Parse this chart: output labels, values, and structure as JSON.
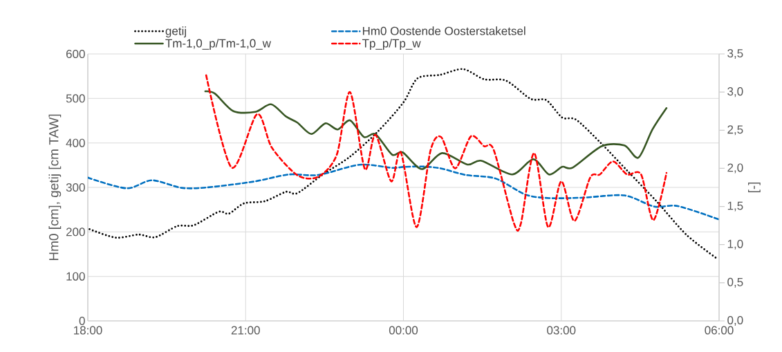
{
  "chart_data": {
    "type": "line",
    "ylabel": "Hm0 [cm], getij [cm TAW]",
    "y2label": "[-]",
    "xlim": [
      "2000-01-01T18:00",
      "2000-01-02T06:00"
    ],
    "xticks": [
      {
        "value": "2000-01-01T18:00",
        "label": "18:00"
      },
      {
        "value": "2000-01-01T21:00",
        "label": "21:00"
      },
      {
        "value": "2000-01-02T00:00",
        "label": "00:00"
      },
      {
        "value": "2000-01-02T03:00",
        "label": "03:00"
      },
      {
        "value": "2000-01-02T06:00",
        "label": "06:00"
      }
    ],
    "ylim": [
      0,
      600
    ],
    "yticks": [
      0,
      100,
      200,
      300,
      400,
      500,
      600
    ],
    "y2lim": [
      0,
      3.5
    ],
    "y2ticks": [
      {
        "value": 0,
        "label": "0,0"
      },
      {
        "value": 0.5,
        "label": "0,5"
      },
      {
        "value": 1,
        "label": "1,0"
      },
      {
        "value": 1.5,
        "label": "1,5"
      },
      {
        "value": 2,
        "label": "2,0"
      },
      {
        "value": 2.5,
        "label": "2,5"
      },
      {
        "value": 3,
        "label": "3,0"
      },
      {
        "value": 3.5,
        "label": "3,5"
      }
    ],
    "grid": true,
    "legend": "top",
    "marker": "none",
    "series": [
      {
        "name": "getij",
        "color": "#000000",
        "line_style": "dotted",
        "x": [
          "2000-01-01T18:02",
          "2000-01-01T18:32",
          "2000-01-01T18:58",
          "2000-01-01T19:17",
          "2000-01-01T19:42",
          "2000-01-01T20:01",
          "2000-01-01T20:29",
          "2000-01-01T20:41",
          "2000-01-01T20:58",
          "2000-01-01T21:22",
          "2000-01-01T21:46",
          "2000-01-01T21:59",
          "2000-01-01T22:28",
          "2000-01-01T22:59",
          "2000-01-01T23:31",
          "2000-01-02T00:00",
          "2000-01-02T00:16",
          "2000-01-02T00:42",
          "2000-01-02T01:08",
          "2000-01-02T01:32",
          "2000-01-02T01:57",
          "2000-01-02T02:25",
          "2000-01-02T02:43",
          "2000-01-02T03:01",
          "2000-01-02T03:17",
          "2000-01-02T03:46",
          "2000-01-02T04:15",
          "2000-01-02T04:49",
          "2000-01-02T05:23",
          "2000-01-02T05:59"
        ],
        "values": [
          206,
          187,
          194,
          188,
          213,
          215,
          245,
          241,
          264,
          269,
          290,
          287,
          329,
          369,
          426,
          491,
          545,
          553,
          566,
          543,
          540,
          499,
          496,
          457,
          452,
          398,
          338,
          268,
          193,
          138
        ]
      },
      {
        "name": "Hm0 Oostende Oosterstaketsel",
        "color": "#0070c0",
        "line_style": "dashed",
        "x": [
          "2000-01-01T18:00",
          "2000-01-01T18:44",
          "2000-01-01T19:13",
          "2000-01-01T19:47",
          "2000-01-01T20:16",
          "2000-01-01T21:09",
          "2000-01-01T21:49",
          "2000-01-01T22:23",
          "2000-01-01T23:10",
          "2000-01-01T23:47",
          "2000-01-02T00:00",
          "2000-01-02T00:21",
          "2000-01-02T00:42",
          "2000-01-02T01:11",
          "2000-01-02T01:45",
          "2000-01-02T02:19",
          "2000-01-02T02:46",
          "2000-01-02T03:25",
          "2000-01-02T04:12",
          "2000-01-02T04:46",
          "2000-01-02T05:13",
          "2000-01-02T06:00"
        ],
        "values": [
          322,
          298,
          316,
          299,
          300,
          313,
          329,
          328,
          351,
          344,
          346,
          347,
          343,
          328,
          320,
          284,
          276,
          277,
          282,
          257,
          258,
          228
        ]
      },
      {
        "name": "Tm-1,0_p/Tm-1,0_w",
        "color": "#375623",
        "line_style": "solid",
        "axis": "y2",
        "x": [
          "2000-01-01T20:14",
          "2000-01-01T20:25",
          "2000-01-01T20:46",
          "2000-01-01T21:11",
          "2000-01-01T21:29",
          "2000-01-01T21:46",
          "2000-01-01T21:59",
          "2000-01-01T22:15",
          "2000-01-01T22:31",
          "2000-01-01T22:45",
          "2000-01-01T22:59",
          "2000-01-01T23:15",
          "2000-01-01T23:28",
          "2000-01-01T23:47",
          "2000-01-01T23:59",
          "2000-01-02T00:21",
          "2000-01-02T00:44",
          "2000-01-02T01:13",
          "2000-01-02T01:29",
          "2000-01-02T02:04",
          "2000-01-02T02:28",
          "2000-01-02T02:46",
          "2000-01-02T03:01",
          "2000-01-02T03:13",
          "2000-01-02T03:46",
          "2000-01-02T04:12",
          "2000-01-02T04:28",
          "2000-01-02T04:44",
          "2000-01-02T05:00"
        ],
        "values": [
          3.01,
          2.98,
          2.75,
          2.74,
          2.84,
          2.68,
          2.6,
          2.45,
          2.59,
          2.51,
          2.63,
          2.41,
          2.45,
          2.18,
          2.21,
          1.99,
          2.2,
          2.05,
          2.1,
          1.92,
          2.12,
          1.92,
          2.02,
          2.01,
          2.29,
          2.3,
          2.14,
          2.51,
          2.79
        ]
      },
      {
        "name": "Tp_p/Tp_w",
        "color": "#ff0000",
        "line_style": "dashed",
        "axis": "y2",
        "x": [
          "2000-01-01T20:15",
          "2000-01-01T20:44",
          "2000-01-01T21:13",
          "2000-01-01T21:30",
          "2000-01-01T21:59",
          "2000-01-01T22:23",
          "2000-01-01T22:44",
          "2000-01-01T22:59",
          "2000-01-01T23:16",
          "2000-01-01T23:28",
          "2000-01-01T23:46",
          "2000-01-01T23:57",
          "2000-01-02T00:15",
          "2000-01-02T00:31",
          "2000-01-02T00:43",
          "2000-01-02T00:59",
          "2000-01-02T01:17",
          "2000-01-02T01:32",
          "2000-01-02T01:43",
          "2000-01-02T02:06",
          "2000-01-02T02:14",
          "2000-01-02T02:29",
          "2000-01-02T02:45",
          "2000-01-02T03:00",
          "2000-01-02T03:15",
          "2000-01-02T03:33",
          "2000-01-02T03:44",
          "2000-01-02T03:59",
          "2000-01-02T04:15",
          "2000-01-02T04:31",
          "2000-01-02T04:45",
          "2000-01-02T05:00"
        ],
        "values": [
          3.22,
          2.01,
          2.71,
          2.27,
          1.91,
          1.89,
          2.18,
          3.0,
          1.99,
          2.44,
          1.83,
          2.21,
          1.23,
          2.24,
          2.41,
          2.0,
          2.42,
          2.29,
          2.24,
          1.28,
          1.28,
          2.2,
          1.23,
          1.83,
          1.31,
          1.88,
          1.92,
          2.09,
          1.92,
          1.92,
          1.32,
          1.94
        ]
      }
    ]
  }
}
